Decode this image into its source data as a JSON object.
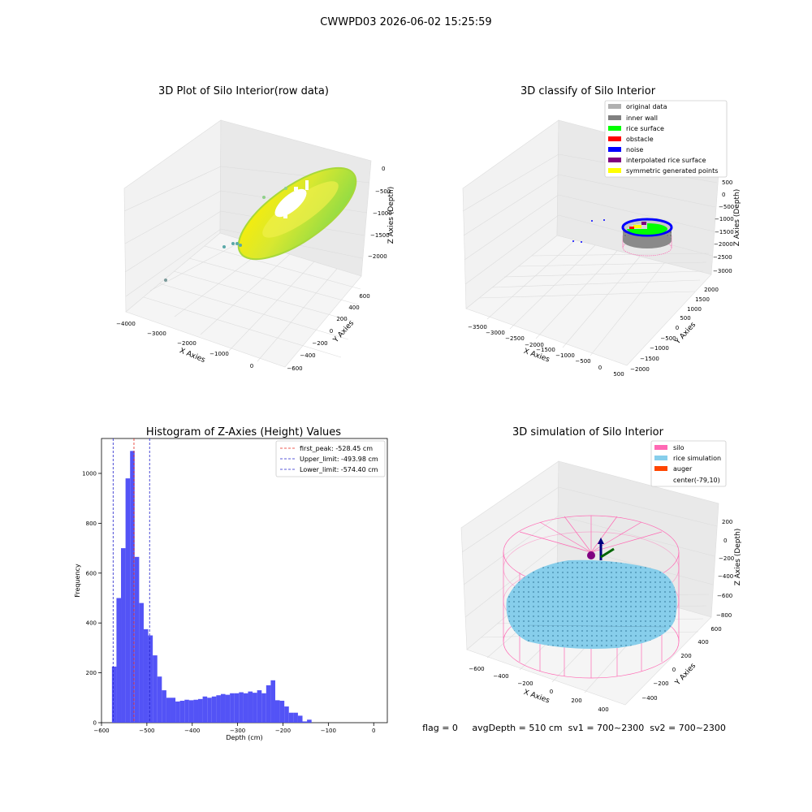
{
  "figure_title": "CWWPD03 2026-06-02 15:25:59",
  "footer_text": "flag = 0     avgDepth = 510 cm  sv1 = 700~2300  sv2 = 700~2300",
  "colors": {
    "hist_bar": "#4a4af5",
    "first_peak": "#e8281f",
    "limit_line": "#2222cc",
    "silo": "#ff69b4",
    "rice_simulation": "#87ceeb",
    "auger": "#ff4500",
    "original_data": "#b0b0b0",
    "inner_wall": "#808080",
    "rice_surface": "#00ff00",
    "obstacle": "#ff0000",
    "noise": "#0000ff",
    "interpolated_rice_surface": "#800080",
    "symmetric_generated_points": "#ffff00"
  },
  "chart_data": [
    {
      "type": "scatter",
      "title": "3D Plot of Silo Interior(row data)",
      "xlabel": "X Axies",
      "ylabel": "Y Axies",
      "zlabel": "Z Axies (Depth)",
      "x_ticks": [
        "−4000",
        "−3000",
        "−2000",
        "−1000",
        "0"
      ],
      "y_ticks": [
        "−600",
        "−400",
        "−200",
        "0",
        "200",
        "400",
        "600"
      ],
      "z_ticks": [
        "0",
        "−500",
        "−1000",
        "−1500",
        "−2000"
      ],
      "ylim": [
        -600,
        600
      ],
      "zlim": [
        -2000,
        0
      ],
      "grid": true
    },
    {
      "type": "scatter",
      "title": "3D classify of Silo Interior",
      "xlabel": "X Axies",
      "ylabel": "Y Axies",
      "zlabel": "Z Axies (Depth)",
      "x_ticks": [
        "−3500",
        "−3000",
        "−2500",
        "−2000",
        "−1500",
        "−1000",
        "−500",
        "0",
        "500"
      ],
      "y_ticks": [
        "−2000",
        "−1500",
        "−1000",
        "−500",
        "0",
        "500",
        "1000",
        "1500",
        "2000"
      ],
      "z_ticks": [
        "500",
        "0",
        "−500",
        "−1000",
        "−1500",
        "−2000",
        "−2500",
        "−3000"
      ],
      "zlim": [
        -3000,
        500
      ],
      "legend": [
        "original data",
        "inner wall",
        "rice surface",
        "obstacle",
        "noise",
        "interpolated rice surface",
        "symmetric generated points"
      ],
      "legend_position": "top-right",
      "grid": true
    },
    {
      "type": "bar",
      "title": "Histogram of Z-Axies (Height) Values",
      "xlabel": "Depth (cm)",
      "ylabel": "Frequency",
      "xlim": [
        -600,
        30
      ],
      "ylim": [
        0,
        1140
      ],
      "x_ticks": [
        -600,
        -500,
        -400,
        -300,
        -200,
        -100,
        0
      ],
      "x_tick_labels": [
        "−600",
        "−500",
        "−400",
        "−300",
        "−200",
        "−100",
        "0"
      ],
      "y_ticks": [
        0,
        200,
        400,
        600,
        800,
        1000
      ],
      "y_tick_labels": [
        "0",
        "200",
        "400",
        "600",
        "800",
        "1000"
      ],
      "bin_start": -577,
      "bin_width": 10,
      "values": [
        225,
        500,
        700,
        980,
        1090,
        665,
        480,
        375,
        350,
        270,
        185,
        130,
        100,
        100,
        85,
        88,
        92,
        90,
        92,
        95,
        105,
        100,
        105,
        110,
        115,
        112,
        118,
        118,
        122,
        118,
        125,
        120,
        130,
        118,
        150,
        170,
        90,
        88,
        65,
        40,
        40,
        28,
        5,
        12
      ],
      "vlines": [
        {
          "name": "first_peak",
          "label": "first_peak: -528.45 cm",
          "x": -528.45,
          "style": "dashed"
        },
        {
          "name": "upper_limit",
          "label": "Upper_limit: -493.98 cm",
          "x": -493.98,
          "style": "dashed"
        },
        {
          "name": "lower_limit",
          "label": "Lower_limit: -574.40 cm",
          "x": -574.4,
          "style": "dashed"
        }
      ],
      "legend_position": "top-right"
    },
    {
      "type": "scatter",
      "title": "3D simulation of Silo Interior",
      "xlabel": "X Axies",
      "ylabel": "Y Axies",
      "zlabel": "Z Axies (Depth)",
      "x_ticks": [
        "−600",
        "−400",
        "−200",
        "0",
        "200",
        "400"
      ],
      "y_ticks": [
        "−400",
        "−200",
        "0",
        "200",
        "400",
        "600"
      ],
      "z_ticks": [
        "200",
        "0",
        "−200",
        "−400",
        "−600",
        "−800"
      ],
      "legend": [
        "silo",
        "rice simulation",
        "auger",
        "center(-79,10)"
      ],
      "legend_position": "top-right",
      "grid": true
    }
  ]
}
